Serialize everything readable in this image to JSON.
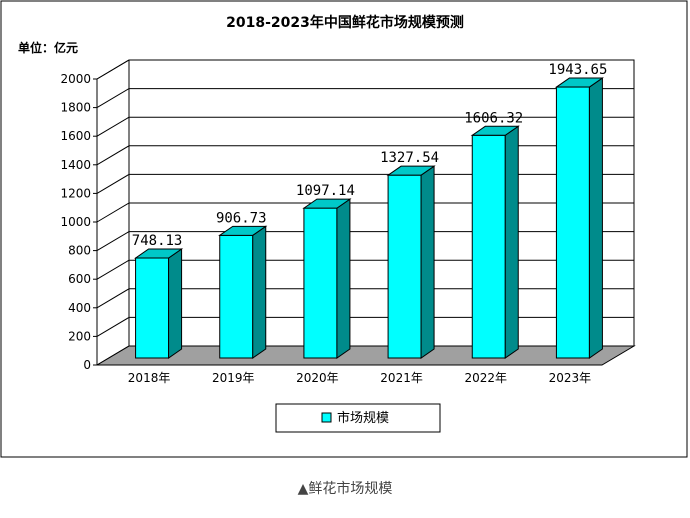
{
  "chart_data": {
    "type": "bar",
    "title": "2018-2023年中国鲜花市场规模预测",
    "unit_label": "单位：亿元",
    "categories": [
      "2018年",
      "2019年",
      "2020年",
      "2021年",
      "2022年",
      "2023年"
    ],
    "series": [
      {
        "name": "市场规模",
        "values": [
          748.13,
          906.73,
          1097.14,
          1327.54,
          1606.32,
          1943.65
        ]
      }
    ],
    "value_labels": [
      "748.13",
      "906.73",
      "1097.14",
      "1327.54",
      "1606.32",
      "1943.65"
    ],
    "ylim": [
      0,
      2000
    ],
    "yticks": [
      "0",
      "200",
      "400",
      "600",
      "800",
      "1000",
      "1200",
      "1400",
      "1600",
      "1800",
      "2000"
    ],
    "grid": true,
    "legend_position": "bottom",
    "three_d": true,
    "colors": {
      "bar_front": "#00FFFF",
      "bar_side": "#008B8B",
      "bar_top": "#00C8C8",
      "floor": "#A0A0A0",
      "grid": "#000000"
    }
  },
  "caption": "▲鲜花市场规模"
}
